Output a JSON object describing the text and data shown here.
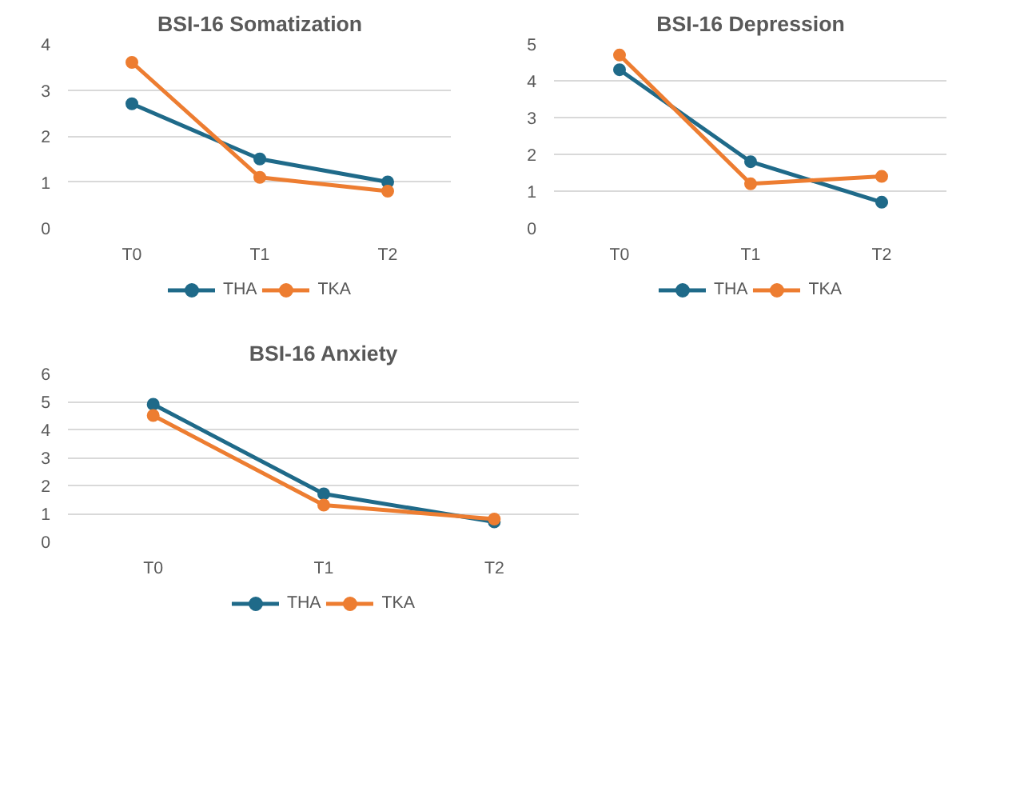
{
  "chart_data": [
    {
      "type": "line",
      "title": "BSI-16 Somatization",
      "categories": [
        "T0",
        "T1",
        "T2"
      ],
      "ylim": [
        0,
        4
      ],
      "yticks": [
        0,
        1,
        2,
        3,
        4
      ],
      "grid": "y",
      "legend": "bottom",
      "marker": "circle",
      "line_style": "solid",
      "series": [
        {
          "name": "THA",
          "color": "#1f6a89",
          "values": [
            2.7,
            1.5,
            1.0
          ]
        },
        {
          "name": "TKA",
          "color": "#ed7d31",
          "values": [
            3.6,
            1.1,
            0.8
          ]
        }
      ]
    },
    {
      "type": "line",
      "title": "BSI-16 Depression",
      "categories": [
        "T0",
        "T1",
        "T2"
      ],
      "ylim": [
        0,
        5
      ],
      "yticks": [
        0,
        1,
        2,
        3,
        4,
        5
      ],
      "grid": "y",
      "legend": "bottom",
      "marker": "circle",
      "line_style": "solid",
      "series": [
        {
          "name": "THA",
          "color": "#1f6a89",
          "values": [
            4.3,
            1.8,
            0.7
          ]
        },
        {
          "name": "TKA",
          "color": "#ed7d31",
          "values": [
            4.7,
            1.2,
            1.4
          ]
        }
      ]
    },
    {
      "type": "line",
      "title": "BSI-16 Anxiety",
      "categories": [
        "T0",
        "T1",
        "T2"
      ],
      "ylim": [
        0,
        6
      ],
      "yticks": [
        0,
        1,
        2,
        3,
        4,
        5,
        6
      ],
      "grid": "y",
      "legend": "bottom",
      "marker": "circle",
      "line_style": "solid",
      "series": [
        {
          "name": "THA",
          "color": "#1f6a89",
          "values": [
            4.9,
            1.7,
            0.7
          ]
        },
        {
          "name": "TKA",
          "color": "#ed7d31",
          "values": [
            4.5,
            1.3,
            0.8
          ]
        }
      ]
    }
  ]
}
